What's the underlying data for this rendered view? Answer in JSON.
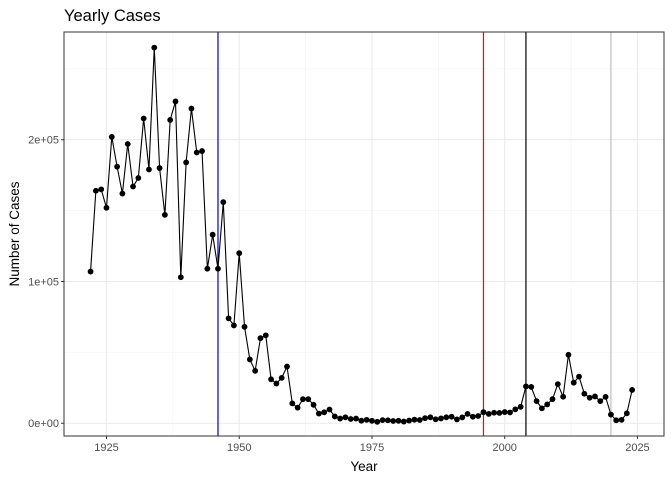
{
  "chart_data": {
    "type": "line",
    "title": "Yearly Cases",
    "xlabel": "Year",
    "ylabel": "Number of Cases",
    "xlim": [
      1917,
      2030
    ],
    "ylim": [
      -9000,
      276000
    ],
    "x_ticks": [
      {
        "value": 1925,
        "label": "1925"
      },
      {
        "value": 1950,
        "label": "1950"
      },
      {
        "value": 1975,
        "label": "1975"
      },
      {
        "value": 2000,
        "label": "2000"
      },
      {
        "value": 2025,
        "label": "2025"
      }
    ],
    "y_ticks": [
      {
        "value": 0,
        "label": "0e+00"
      },
      {
        "value": 100000,
        "label": "1e+05"
      },
      {
        "value": 200000,
        "label": "2e+05"
      }
    ],
    "grid": true,
    "vlines": [
      {
        "x": 1946,
        "color": "#0000cc"
      },
      {
        "x": 1996,
        "color": "#ff0000"
      },
      {
        "x": 2004,
        "color": "#000000"
      },
      {
        "x": 2020,
        "color": "#bebebe"
      }
    ],
    "series": [
      {
        "color": "#000000",
        "points": [
          [
            1922,
            107000
          ],
          [
            1923,
            164000
          ],
          [
            1924,
            165000
          ],
          [
            1925,
            152000
          ],
          [
            1926,
            202000
          ],
          [
            1927,
            181000
          ],
          [
            1928,
            162000
          ],
          [
            1929,
            197000
          ],
          [
            1930,
            167000
          ],
          [
            1931,
            173000
          ],
          [
            1932,
            215000
          ],
          [
            1933,
            179000
          ],
          [
            1934,
            265000
          ],
          [
            1935,
            180000
          ],
          [
            1936,
            147000
          ],
          [
            1937,
            214000
          ],
          [
            1938,
            227000
          ],
          [
            1939,
            103000
          ],
          [
            1940,
            184000
          ],
          [
            1941,
            222000
          ],
          [
            1942,
            191000
          ],
          [
            1943,
            192000
          ],
          [
            1944,
            109000
          ],
          [
            1945,
            133000
          ],
          [
            1946,
            109000
          ],
          [
            1947,
            156000
          ],
          [
            1948,
            74000
          ],
          [
            1949,
            69000
          ],
          [
            1950,
            120000
          ],
          [
            1951,
            68000
          ],
          [
            1952,
            45000
          ],
          [
            1953,
            37000
          ],
          [
            1954,
            60000
          ],
          [
            1955,
            62000
          ],
          [
            1956,
            31000
          ],
          [
            1957,
            28000
          ],
          [
            1958,
            32000
          ],
          [
            1959,
            40000
          ],
          [
            1960,
            14000
          ],
          [
            1961,
            11000
          ],
          [
            1962,
            17000
          ],
          [
            1963,
            17000
          ],
          [
            1964,
            13000
          ],
          [
            1965,
            6800
          ],
          [
            1966,
            7700
          ],
          [
            1967,
            9700
          ],
          [
            1968,
            4800
          ],
          [
            1969,
            3300
          ],
          [
            1970,
            4200
          ],
          [
            1971,
            3000
          ],
          [
            1972,
            3300
          ],
          [
            1973,
            1800
          ],
          [
            1974,
            2400
          ],
          [
            1975,
            1700
          ],
          [
            1976,
            1000
          ],
          [
            1977,
            2200
          ],
          [
            1978,
            2100
          ],
          [
            1979,
            1600
          ],
          [
            1980,
            1700
          ],
          [
            1981,
            1200
          ],
          [
            1982,
            1900
          ],
          [
            1983,
            2500
          ],
          [
            1984,
            2300
          ],
          [
            1985,
            3600
          ],
          [
            1986,
            4200
          ],
          [
            1987,
            2800
          ],
          [
            1988,
            3400
          ],
          [
            1989,
            4200
          ],
          [
            1990,
            4600
          ],
          [
            1991,
            2700
          ],
          [
            1992,
            4100
          ],
          [
            1993,
            6600
          ],
          [
            1994,
            4600
          ],
          [
            1995,
            5100
          ],
          [
            1996,
            7800
          ],
          [
            1997,
            6600
          ],
          [
            1998,
            7400
          ],
          [
            1999,
            7300
          ],
          [
            2000,
            7900
          ],
          [
            2001,
            7600
          ],
          [
            2002,
            9800
          ],
          [
            2003,
            11600
          ],
          [
            2004,
            26000
          ],
          [
            2005,
            25600
          ],
          [
            2006,
            15600
          ],
          [
            2007,
            10500
          ],
          [
            2008,
            13300
          ],
          [
            2009,
            17000
          ],
          [
            2010,
            27600
          ],
          [
            2011,
            18700
          ],
          [
            2012,
            48300
          ],
          [
            2013,
            28600
          ],
          [
            2014,
            32900
          ],
          [
            2015,
            20800
          ],
          [
            2016,
            18000
          ],
          [
            2017,
            18900
          ],
          [
            2018,
            15600
          ],
          [
            2019,
            18600
          ],
          [
            2020,
            6100
          ],
          [
            2021,
            2100
          ],
          [
            2022,
            2400
          ],
          [
            2023,
            7000
          ],
          [
            2024,
            23500
          ]
        ]
      }
    ]
  }
}
